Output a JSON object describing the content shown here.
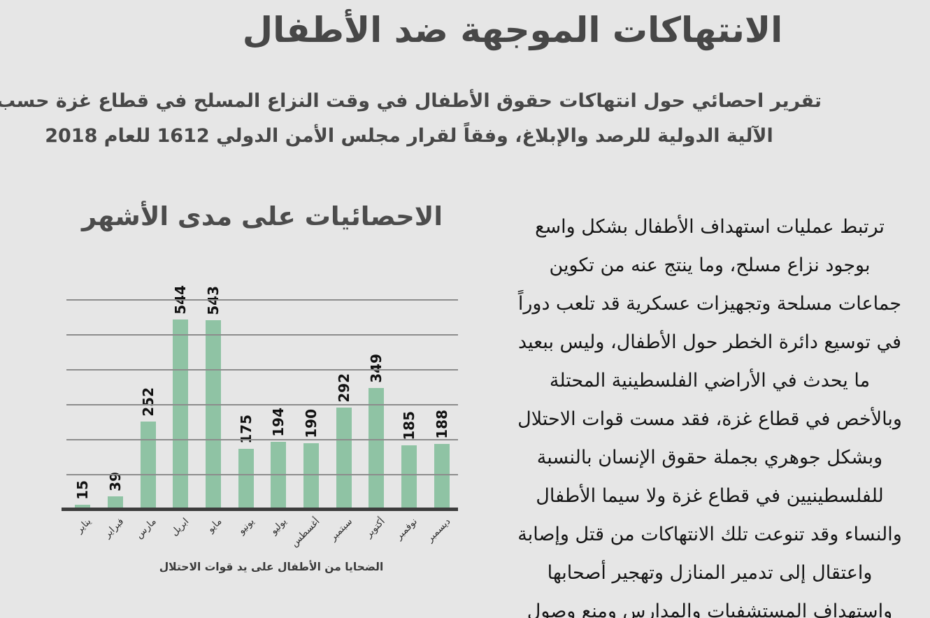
{
  "header": {
    "title": "الانتهاكات الموجهة ضد الأطفال",
    "subtitle_lines": [
      "تقرير احصائي حول انتهاكات حقوق الأطفال في وقت النزاع المسلح في قطاع غزة حسب",
      "الآلية الدولية للرصد والإبلاغ، وفقاً لقرار مجلس الأمن الدولي 1612 للعام 2018"
    ]
  },
  "chart": {
    "title": "الاحصائيات على مدى الأشهر",
    "caption": "الضحايا من الأطفال على يد قوات الاحتلال"
  },
  "chart_data": {
    "type": "bar",
    "title": "الاحصائيات على مدى الأشهر",
    "categories": [
      "يناير",
      "فبراير",
      "مارس",
      "ابريل",
      "مايو",
      "يونيو",
      "يوليو",
      "أغسطس",
      "سبتمبر",
      "أكتوبر",
      "نوفمبر",
      "ديسمبر"
    ],
    "values": [
      15,
      39,
      252,
      544,
      543,
      175,
      194,
      190,
      292,
      349,
      185,
      188
    ],
    "xlabel": "الضحايا من الأطفال على يد قوات الاحتلال",
    "ylabel": "",
    "ylim": [
      0,
      600
    ],
    "gridline_step": 100,
    "grid": true,
    "legend_position": "none",
    "value_labels_rotation_deg": 90,
    "category_labels_rotation_deg": 45
  },
  "article": {
    "lines": [
      "ترتبط عمليات استهداف الأطفال بشكل واسع",
      "بوجود نزاع مسلح، وما ينتج عنه من تكوين",
      "جماعات مسلحة وتجهيزات عسكرية قد تلعب دوراً",
      "في توسيع دائرة الخطر حول الأطفال، وليس ببعيد",
      "ما يحدث في الأراضي الفلسطينية المحتلة",
      "وبالأخص في قطاع غزة، فقد مست قوات الاحتلال",
      "وبشكل جوهري بجملة حقوق الإنسان بالنسبة",
      "للفلسطينيين في قطاع غزة ولا سيما الأطفال",
      "والنساء وقد تنوعت تلك الانتهاكات من قتل وإصابة",
      "واعتقال إلى تدمير المنازل وتهجير أصحابها",
      "واستهداف المستشفيات والمدارس ومنع وصول"
    ]
  },
  "colors": {
    "background": "#e6e6e6",
    "bar": "#8fc3a4",
    "gridline": "#8c8c8c",
    "axis": "#3d3d3d",
    "heading": "#474747",
    "body_text": "#161616"
  }
}
